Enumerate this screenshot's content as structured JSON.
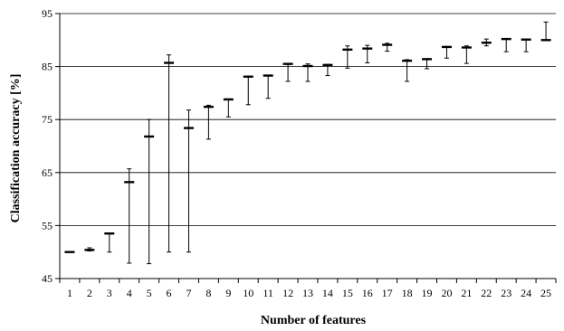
{
  "chart_data": {
    "type": "scatter",
    "title": "",
    "xlabel": "Number of features",
    "ylabel": "Classification accuracy [%]",
    "ylim": [
      45,
      95
    ],
    "yticks": [
      45,
      55,
      65,
      75,
      85,
      95
    ],
    "xlim": [
      0.5,
      25.5
    ],
    "grid": "horizontal",
    "legend": "none",
    "series": [
      {
        "x": [
          1,
          2,
          3,
          4,
          5,
          6,
          7,
          8,
          9,
          10,
          11,
          12,
          13,
          14,
          15,
          16,
          17,
          18,
          19,
          20,
          21,
          22,
          23,
          24,
          25
        ],
        "values": [
          50.0,
          50.4,
          53.5,
          63.2,
          71.8,
          85.7,
          73.4,
          77.4,
          78.8,
          83.1,
          83.3,
          85.5,
          85.1,
          85.3,
          88.2,
          88.4,
          89.1,
          86.1,
          86.4,
          88.7,
          88.6,
          89.5,
          90.2,
          90.1,
          90.0
        ],
        "error_max": [
          50.0,
          50.8,
          53.5,
          65.7,
          75.0,
          87.2,
          76.8,
          77.7,
          78.9,
          83.2,
          83.4,
          85.5,
          85.5,
          85.4,
          88.9,
          89.0,
          89.4,
          86.3,
          86.5,
          88.8,
          88.9,
          90.2,
          90.3,
          90.1,
          93.4
        ],
        "error_min": [
          50.0,
          50.2,
          50.0,
          47.9,
          47.8,
          50.0,
          50.0,
          71.3,
          75.5,
          77.8,
          79.0,
          82.2,
          82.2,
          83.3,
          84.7,
          85.7,
          87.9,
          82.2,
          84.6,
          86.6,
          85.6,
          88.9,
          87.8,
          87.8,
          89.9
        ]
      }
    ]
  }
}
